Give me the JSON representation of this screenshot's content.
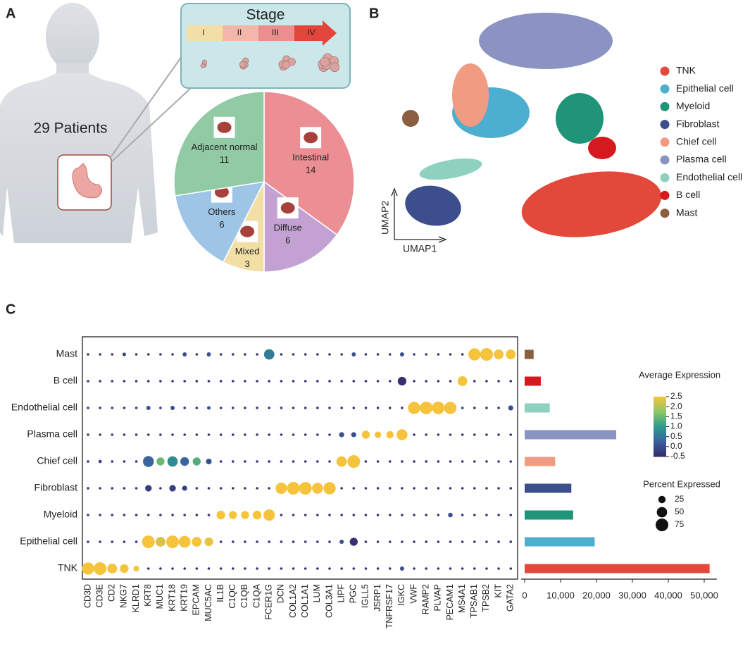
{
  "panels": [
    "A",
    "B",
    "C"
  ],
  "illustration": {
    "patients": "29 Patients",
    "stage_title": "Stage",
    "stages": [
      "I",
      "II",
      "III",
      "IV"
    ]
  },
  "chart_data": [
    {
      "type": "pie",
      "categories": [
        "Intestinal",
        "Diffuse",
        "Mixed",
        "Others",
        "Adjacent normal"
      ],
      "values": [
        14,
        6,
        3,
        6,
        11
      ],
      "colors": [
        "#eb8f94",
        "#c3a2d3",
        "#f1dfa6",
        "#9ec4e6",
        "#90cba6"
      ]
    },
    {
      "type": "umap",
      "x_label": "UMAP1",
      "y_label": "UMAP2",
      "clusters": [
        "TNK",
        "Epithelial cell",
        "Myeloid",
        "Fibroblast",
        "Chief cell",
        "Plasma cell",
        "Endothelial cell",
        "B cell",
        "Mast"
      ],
      "colors": [
        "#e2493a",
        "#4cafd0",
        "#1f9478",
        "#3c4e8b",
        "#f29b83",
        "#8b93c3",
        "#8ed1bf",
        "#d51a1f",
        "#8a5e3e"
      ]
    },
    {
      "type": "dotplot",
      "genes": [
        "CD3D",
        "CD3E",
        "CD2",
        "NKG7",
        "KLRD1",
        "KRT8",
        "MUC1",
        "KRT18",
        "KRT19",
        "EPCAM",
        "MUC5AC",
        "IL1B",
        "C1QC",
        "C1QB",
        "C1QA",
        "FCER1G",
        "DCN",
        "COL1A2",
        "COL1A1",
        "LUM",
        "COL3A1",
        "LIPF",
        "PGC",
        "IGLL5",
        "JSRP1",
        "TNFRSF17",
        "IGKC",
        "VWF",
        "RAMP2",
        "PLVAP",
        "PECAM1",
        "MS4A1",
        "TPSAB1",
        "TPSB2",
        "KIT",
        "GATA2"
      ],
      "categories": [
        "Mast",
        "B cell",
        "Endothelial cell",
        "Plasma cell",
        "Chief cell",
        "Fibroblast",
        "Myeloid",
        "Epithelial cell",
        "TNK"
      ],
      "series": [
        {
          "name": "Average Expression",
          "values": [
            [
              -0.3,
              -0.3,
              -0.3,
              -0.2,
              -0.3,
              -0.3,
              -0.3,
              -0.3,
              0,
              -0.3,
              0,
              -0.3,
              -0.3,
              -0.3,
              -0.3,
              0.6,
              -0.3,
              -0.3,
              -0.3,
              -0.3,
              -0.3,
              -0.3,
              0,
              -0.3,
              -0.3,
              -0.3,
              0,
              -0.3,
              -0.3,
              -0.3,
              -0.3,
              -0.3,
              2.5,
              2.5,
              2.5,
              2.5
            ],
            [
              -0.3,
              -0.3,
              -0.3,
              -0.3,
              -0.3,
              -0.3,
              -0.3,
              -0.3,
              -0.3,
              -0.3,
              -0.3,
              -0.3,
              -0.3,
              -0.3,
              -0.3,
              -0.3,
              -0.3,
              -0.3,
              -0.3,
              -0.3,
              -0.3,
              -0.3,
              -0.3,
              -0.3,
              -0.3,
              -0.3,
              -0.4,
              -0.3,
              -0.3,
              -0.3,
              -0.3,
              2.5,
              -0.3,
              -0.3,
              -0.3,
              -0.3
            ],
            [
              -0.3,
              -0.3,
              -0.3,
              -0.3,
              -0.3,
              0,
              -0.3,
              0,
              -0.3,
              -0.3,
              0,
              -0.3,
              -0.3,
              -0.3,
              -0.3,
              -0.3,
              -0.3,
              -0.3,
              -0.3,
              -0.3,
              -0.3,
              -0.3,
              -0.3,
              -0.3,
              -0.3,
              -0.3,
              -0.3,
              2.5,
              2.5,
              2.5,
              2.5,
              -0.3,
              -0.3,
              -0.3,
              -0.3,
              0
            ],
            [
              -0.3,
              -0.3,
              -0.3,
              -0.3,
              -0.3,
              -0.3,
              -0.3,
              -0.3,
              -0.3,
              -0.3,
              -0.3,
              -0.3,
              -0.3,
              -0.3,
              -0.3,
              -0.3,
              -0.3,
              -0.3,
              -0.3,
              -0.3,
              -0.3,
              0,
              0,
              2.5,
              2.5,
              2.5,
              2.5,
              -0.3,
              -0.3,
              -0.3,
              -0.3,
              -0.3,
              -0.3,
              -0.3,
              -0.3,
              -0.3
            ],
            [
              -0.3,
              -0.2,
              -0.3,
              -0.3,
              -0.3,
              0.3,
              1.5,
              0.8,
              0.3,
              1.3,
              0,
              -0.3,
              -0.3,
              -0.3,
              -0.3,
              -0.3,
              -0.3,
              -0.3,
              -0.3,
              -0.3,
              -0.3,
              2.5,
              2.5,
              -0.3,
              -0.3,
              -0.3,
              -0.3,
              -0.3,
              -0.3,
              -0.3,
              -0.3,
              -0.3,
              -0.3,
              -0.3,
              -0.3,
              -0.3
            ],
            [
              -0.3,
              -0.3,
              -0.3,
              -0.3,
              -0.3,
              -0.2,
              -0.3,
              -0.2,
              -0.2,
              -0.3,
              -0.3,
              -0.3,
              -0.3,
              -0.3,
              -0.3,
              -0.3,
              2.5,
              2.5,
              2.5,
              2.5,
              2.5,
              -0.3,
              -0.3,
              -0.3,
              -0.3,
              -0.3,
              -0.3,
              -0.3,
              -0.3,
              -0.3,
              -0.3,
              -0.3,
              -0.3,
              -0.3,
              -0.3,
              -0.3
            ],
            [
              -0.3,
              -0.3,
              -0.3,
              -0.3,
              -0.3,
              -0.3,
              -0.3,
              -0.3,
              -0.3,
              -0.3,
              -0.3,
              2.5,
              2.5,
              2.5,
              2.5,
              2.5,
              -0.3,
              -0.3,
              -0.3,
              -0.3,
              -0.3,
              -0.3,
              -0.3,
              -0.3,
              -0.3,
              -0.3,
              -0.3,
              -0.3,
              -0.3,
              -0.3,
              0,
              -0.3,
              -0.3,
              -0.3,
              -0.3,
              -0.3
            ],
            [
              -0.3,
              -0.3,
              -0.3,
              -0.3,
              -0.3,
              2.5,
              2.3,
              2.5,
              2.5,
              2.5,
              2.4,
              -0.3,
              -0.3,
              -0.3,
              -0.3,
              -0.3,
              -0.3,
              -0.3,
              -0.3,
              -0.3,
              -0.3,
              0,
              -0.4,
              -0.3,
              -0.3,
              -0.3,
              -0.3,
              -0.3,
              -0.3,
              -0.3,
              -0.3,
              -0.3,
              -0.3,
              -0.3,
              -0.3,
              -0.3
            ],
            [
              2.5,
              2.5,
              2.5,
              2.5,
              2.5,
              -0.3,
              -0.3,
              -0.3,
              -0.3,
              -0.3,
              -0.3,
              -0.3,
              -0.3,
              -0.3,
              -0.3,
              -0.3,
              -0.3,
              -0.3,
              -0.3,
              -0.3,
              -0.3,
              -0.3,
              -0.3,
              -0.3,
              -0.3,
              -0.3,
              0,
              -0.3,
              -0.3,
              -0.3,
              -0.3,
              -0.3,
              -0.3,
              -0.3,
              -0.3,
              -0.3
            ]
          ]
        },
        {
          "name": "Percent Expressed",
          "values": [
            [
              3,
              3,
              3,
              6,
              3,
              3,
              3,
              3,
              8,
              3,
              8,
              3,
              3,
              3,
              3,
              50,
              3,
              3,
              3,
              3,
              3,
              3,
              8,
              3,
              3,
              3,
              8,
              3,
              3,
              3,
              3,
              3,
              70,
              75,
              45,
              45
            ],
            [
              3,
              3,
              3,
              3,
              3,
              3,
              3,
              3,
              3,
              3,
              3,
              3,
              3,
              3,
              3,
              3,
              3,
              3,
              3,
              3,
              3,
              3,
              3,
              3,
              3,
              3,
              35,
              3,
              3,
              3,
              3,
              45,
              3,
              3,
              3,
              3
            ],
            [
              3,
              3,
              3,
              3,
              3,
              8,
              3,
              8,
              3,
              3,
              6,
              3,
              3,
              3,
              3,
              3,
              3,
              3,
              3,
              3,
              3,
              3,
              3,
              3,
              3,
              3,
              3,
              70,
              75,
              75,
              70,
              3,
              3,
              3,
              3,
              12
            ],
            [
              3,
              3,
              3,
              3,
              3,
              3,
              3,
              3,
              3,
              3,
              3,
              3,
              3,
              3,
              3,
              3,
              3,
              3,
              3,
              3,
              3,
              12,
              12,
              30,
              20,
              25,
              55,
              3,
              3,
              3,
              3,
              3,
              3,
              3,
              3,
              3
            ],
            [
              3,
              5,
              3,
              3,
              3,
              55,
              30,
              50,
              35,
              30,
              15,
              3,
              3,
              3,
              3,
              3,
              3,
              3,
              3,
              3,
              3,
              50,
              75,
              3,
              3,
              3,
              3,
              3,
              3,
              3,
              3,
              3,
              3,
              3,
              3,
              3
            ],
            [
              3,
              3,
              3,
              3,
              3,
              20,
              3,
              20,
              12,
              3,
              3,
              3,
              3,
              3,
              3,
              3,
              60,
              75,
              75,
              55,
              70,
              3,
              3,
              3,
              3,
              3,
              3,
              3,
              3,
              3,
              3,
              3,
              3,
              3,
              3,
              3
            ],
            [
              3,
              3,
              3,
              3,
              3,
              3,
              3,
              3,
              3,
              3,
              3,
              35,
              30,
              30,
              35,
              60,
              3,
              3,
              3,
              3,
              3,
              3,
              3,
              3,
              3,
              3,
              3,
              3,
              3,
              3,
              10,
              3,
              3,
              3,
              3,
              3
            ],
            [
              3,
              3,
              3,
              3,
              3,
              75,
              45,
              75,
              65,
              45,
              35,
              3,
              3,
              3,
              3,
              3,
              3,
              3,
              3,
              3,
              3,
              8,
              30,
              3,
              3,
              3,
              3,
              3,
              3,
              3,
              3,
              3,
              3,
              3,
              3,
              3
            ],
            [
              70,
              75,
              45,
              35,
              15,
              3,
              3,
              3,
              3,
              3,
              3,
              3,
              3,
              3,
              3,
              3,
              3,
              3,
              3,
              3,
              3,
              3,
              3,
              3,
              3,
              3,
              8,
              3,
              3,
              3,
              3,
              3,
              3,
              3,
              3,
              3
            ]
          ]
        }
      ],
      "colorbar_lim": [
        -0.5,
        2.5
      ],
      "colorbar_ticks": [
        2.5,
        {
          "value": 2,
          "label": "2.0"
        },
        1.5,
        {
          "value": 1,
          "label": "1.0"
        },
        0.5,
        {
          "value": 0,
          "label": "0.0"
        },
        -0.5
      ],
      "colormap": [
        "#35296b",
        "#3c5f9f",
        "#2a9c8e",
        "#8cc765",
        "#f5c33c"
      ],
      "size_ticks": [
        25,
        50,
        75
      ],
      "size_lim": [
        0,
        75
      ]
    },
    {
      "type": "barh",
      "values": [
        2500,
        4500,
        7000,
        25500,
        8500,
        13000,
        13500,
        19500,
        51500
      ],
      "colors": [
        "#8a5e3e",
        "#d51a1f",
        "#8ed1bf",
        "#8b93c3",
        "#f29b83",
        "#3c4e8b",
        "#1f9478",
        "#4cafd0",
        "#e2493a"
      ],
      "xlim": [
        0,
        53500
      ],
      "xticks": [
        0,
        {
          "value": 10000,
          "label": "10,000"
        },
        {
          "value": 20000,
          "label": "20,000"
        },
        {
          "value": 30000,
          "label": "30,000"
        },
        {
          "value": 40000,
          "label": "40,000"
        },
        {
          "value": 50000,
          "label": "50,000"
        }
      ]
    }
  ]
}
